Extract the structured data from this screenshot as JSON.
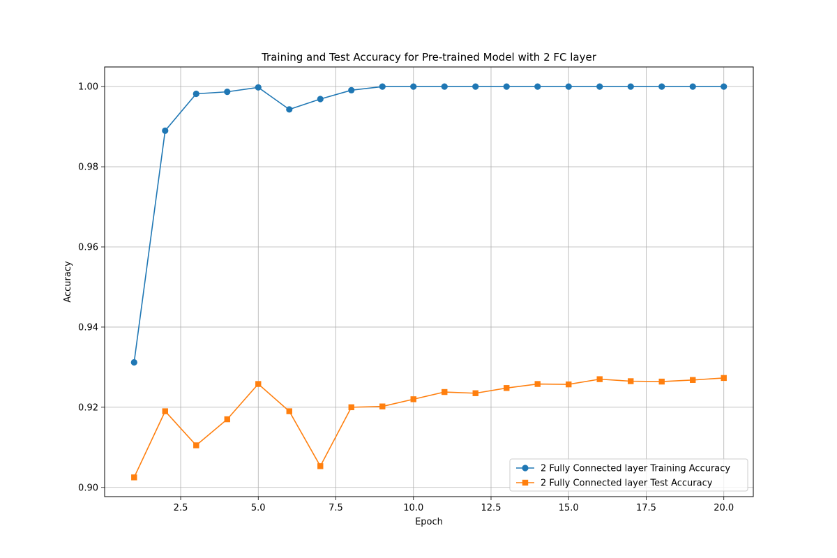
{
  "chart_data": {
    "type": "line",
    "title": "Training and Test Accuracy for Pre-trained Model with 2 FC layer",
    "xlabel": "Epoch",
    "ylabel": "Accuracy",
    "xlim": [
      0.05,
      20.95
    ],
    "ylim": [
      0.8977,
      1.0049
    ],
    "xticks": [
      2.5,
      5.0,
      7.5,
      10.0,
      12.5,
      15.0,
      17.5,
      20.0
    ],
    "xtick_labels": [
      "2.5",
      "5.0",
      "7.5",
      "10.0",
      "12.5",
      "15.0",
      "17.5",
      "20.0"
    ],
    "yticks": [
      0.9,
      0.92,
      0.94,
      0.96,
      0.98,
      1.0
    ],
    "ytick_labels": [
      "0.90",
      "0.92",
      "0.94",
      "0.96",
      "0.98",
      "1.00"
    ],
    "grid": true,
    "legend_position": "lower-right",
    "x": [
      1,
      2,
      3,
      4,
      5,
      6,
      7,
      8,
      9,
      10,
      11,
      12,
      13,
      14,
      15,
      16,
      17,
      18,
      19,
      20
    ],
    "series": [
      {
        "name": "2 Fully Connected layer Training Accuracy",
        "color": "#1f77b4",
        "marker": "circle",
        "values": [
          0.9312,
          0.989,
          0.9982,
          0.9987,
          0.9998,
          0.9943,
          0.9969,
          0.9991,
          1.0,
          1.0,
          1.0,
          1.0,
          1.0,
          1.0,
          1.0,
          1.0,
          1.0,
          1.0,
          1.0,
          1.0
        ]
      },
      {
        "name": "2 Fully Connected layer Test Accuracy",
        "color": "#ff7f0e",
        "marker": "square",
        "values": [
          0.9025,
          0.919,
          0.9105,
          0.917,
          0.9258,
          0.919,
          0.9053,
          0.92,
          0.9202,
          0.922,
          0.9238,
          0.9235,
          0.9248,
          0.9258,
          0.9257,
          0.927,
          0.9265,
          0.9264,
          0.9268,
          0.9273
        ]
      }
    ]
  }
}
